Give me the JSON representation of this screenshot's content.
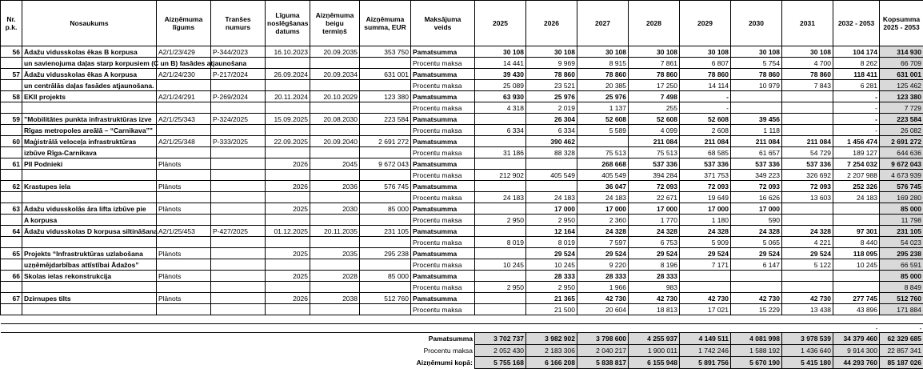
{
  "table": {
    "columns": [
      "Nr.\np.k.",
      "Nosaukums",
      "Aizņēmuma\nlīgums",
      "Tranšes\nnumurs",
      "Līguma\nnoslēgšanas\ndatums",
      "Aizņēmuma\nbeigu\ntermiņš",
      "Aizņēmuma\nsumma, EUR",
      "Maksājuma\nveids",
      "2025",
      "2026",
      "2027",
      "2028",
      "2029",
      "2030",
      "2031",
      "2032 - 2053",
      "Kopsumma\n2025 - 2053"
    ],
    "rows": [
      {
        "nr": "56",
        "name": [
          "Ādažu vidusskolas ēkas B korpusa",
          "un savienojuma daļas starp korpusiem (C un B) fasādes atjaunošana"
        ],
        "agreement": "A2/1/23/429",
        "tranche": "P-344/2023",
        "signed": "16.10.2023",
        "end": "20.09.2035",
        "amount": "353 750",
        "payments": [
          {
            "type": "Pamatsumma",
            "values": [
              "30 108",
              "30 108",
              "30 108",
              "30 108",
              "30 108",
              "30 108",
              "30 108",
              "104 174",
              "314 930"
            ]
          },
          {
            "type": "Procentu maksa",
            "values": [
              "14 441",
              "9 969",
              "8 915",
              "7 861",
              "6 807",
              "5 754",
              "4 700",
              "8 262",
              "66 709"
            ]
          }
        ]
      },
      {
        "nr": "57",
        "name": [
          "Ādažu vidusskolas ēkas A korpusa",
          "un centrālās daļas fasādes atjaunošana."
        ],
        "agreement": "A2/1/24/230",
        "tranche": "P-217/2024",
        "signed": "26.09.2024",
        "end": "20.09.2034",
        "amount": "631 001",
        "payments": [
          {
            "type": "Pamatsumma",
            "values": [
              "39 430",
              "78 860",
              "78 860",
              "78 860",
              "78 860",
              "78 860",
              "78 860",
              "118 411",
              "631 001"
            ]
          },
          {
            "type": "Procentu maksa",
            "values": [
              "25 089",
              "23 521",
              "20 385",
              "17 250",
              "14 114",
              "10 979",
              "7 843",
              "6 281",
              "125 462"
            ]
          }
        ]
      },
      {
        "nr": "58",
        "name": [
          "EKII projekts"
        ],
        "agreement": "A2/1/24/291",
        "tranche": "P-269/2024",
        "signed": "20.11.2024",
        "end": "20.10.2029",
        "amount": "123 380",
        "payments": [
          {
            "type": "Pamatsumma",
            "values": [
              "63 930",
              "25 976",
              "25 976",
              "7 498",
              "-",
              null,
              null,
              "-",
              "123 380"
            ]
          },
          {
            "type": "Procentu maksa",
            "values": [
              "4 318",
              "2 019",
              "1 137",
              "255",
              "-",
              null,
              null,
              "-",
              "7 729"
            ]
          }
        ]
      },
      {
        "nr": "59",
        "name": [
          "”Mobilitātes punkta infrastruktūras izve",
          "Rīgas metropoles areālā – “Carnikava”\""
        ],
        "agreement": "A2/1/25/343",
        "tranche": "P-324/2025",
        "signed": "15.09.2025",
        "end": "20.08.2030",
        "amount": "223 584",
        "payments": [
          {
            "type": "Pamatsumma",
            "values": [
              null,
              "26 304",
              "52 608",
              "52 608",
              "52 608",
              "39 456",
              null,
              "-",
              "223 584"
            ]
          },
          {
            "type": "Procentu maksa",
            "values": [
              "6 334",
              "6 334",
              "5 589",
              "4 099",
              "2 608",
              "1 118",
              null,
              "-",
              "26 082"
            ]
          }
        ]
      },
      {
        "nr": "60",
        "name": [
          "Maģistrālā  veloceļa infrastruktūras",
          "izbūve Rīga-Carnikava"
        ],
        "agreement": "A2/1/25/348",
        "tranche": "P-333/2025",
        "signed": "22.09.2025",
        "end": "20.09.2040",
        "amount": "2 691 272",
        "payments": [
          {
            "type": "Pamatsumma",
            "values": [
              null,
              "390 462",
              null,
              "211 084",
              "211 084",
              "211 084",
              "211 084",
              "1 456 474",
              "2 691 272"
            ]
          },
          {
            "type": "Procentu maksa",
            "values": [
              "31 186",
              "88 328",
              "75 513",
              "75 513",
              "68 585",
              "61 657",
              "54 729",
              "189 127",
              "644 636"
            ]
          }
        ]
      },
      {
        "nr": "61",
        "name": [
          "PII Podnieki"
        ],
        "agreement": "Plānots",
        "tranche": null,
        "signed": "2026",
        "end": "2045",
        "amount": "9 672 043",
        "payments": [
          {
            "type": "Pamatsumma",
            "values": [
              null,
              null,
              "268 668",
              "537 336",
              "537 336",
              "537 336",
              "537 336",
              "7 254 032",
              "9 672 043"
            ]
          },
          {
            "type": "Procentu maksa",
            "values": [
              "212 902",
              "405 549",
              "405 549",
              "394 284",
              "371 753",
              "349 223",
              "326 692",
              "2 207 988",
              "4 673 939"
            ]
          }
        ]
      },
      {
        "nr": "62",
        "name": [
          "Krastupes iela"
        ],
        "agreement": "Plānots",
        "tranche": null,
        "signed": "2026",
        "end": "2036",
        "amount": "576 745",
        "payments": [
          {
            "type": "Pamatsumma",
            "values": [
              null,
              null,
              "36 047",
              "72 093",
              "72 093",
              "72 093",
              "72 093",
              "252 326",
              "576 745"
            ]
          },
          {
            "type": "Procentu maksa",
            "values": [
              "24 183",
              "24 183",
              "24 183",
              "22 671",
              "19 649",
              "16 626",
              "13 603",
              "24 183",
              "169 280"
            ]
          }
        ]
      },
      {
        "nr": "63",
        "name": [
          "Ādažu vidusskolās āra lifta izbūve pie",
          "A korpusa"
        ],
        "agreement": "Plānots",
        "tranche": null,
        "signed": "2025",
        "end": "2030",
        "amount": "85 000",
        "payments": [
          {
            "type": "Pamatsumma",
            "values": [
              null,
              "17 000",
              "17 000",
              "17 000",
              "17 000",
              "17 000",
              null,
              null,
              "85 000"
            ]
          },
          {
            "type": "Procentu maksa",
            "values": [
              "2 950",
              "2 950",
              "2 360",
              "1 770",
              "1 180",
              "590",
              null,
              null,
              "11 798"
            ]
          }
        ]
      },
      {
        "nr": "64",
        "name": [
          "Ādažu vidusskolas D korpusa siltināšana"
        ],
        "agreement": "A2/1/25/453",
        "tranche": "P-427/2025",
        "signed": "01.12.2025",
        "end": "20.11.2035",
        "amount": "231 105",
        "payments": [
          {
            "type": "Pamatsumma",
            "values": [
              null,
              "12 164",
              "24 328",
              "24 328",
              "24 328",
              "24 328",
              "24 328",
              "97 301",
              "231 105"
            ]
          },
          {
            "type": "Procentu maksa",
            "values": [
              "8 019",
              "8 019",
              "7 597",
              "6 753",
              "5 909",
              "5 065",
              "4 221",
              "8 440",
              "54 023"
            ]
          }
        ]
      },
      {
        "nr": "65",
        "name": [
          "Projekts “Infrastruktūras uzlabošana",
          "uzņēmējdarbības attīstībai Ādažos”"
        ],
        "agreement": "Plānots",
        "tranche": null,
        "signed": "2025",
        "end": "2035",
        "amount": "295 238",
        "payments": [
          {
            "type": "Pamatsumma",
            "values": [
              null,
              "29 524",
              "29 524",
              "29 524",
              "29 524",
              "29 524",
              "29 524",
              "118 095",
              "295 238"
            ]
          },
          {
            "type": "Procentu maksa",
            "values": [
              "10 245",
              "10 245",
              "9 220",
              "8 196",
              "7 171",
              "6 147",
              "5 122",
              "10 245",
              "66 591"
            ]
          }
        ]
      },
      {
        "nr": "66",
        "name": [
          "Skolas ielas rekonstrukcija"
        ],
        "agreement": "Plānots",
        "tranche": null,
        "signed": "2025",
        "end": "2028",
        "amount": "85 000",
        "payments": [
          {
            "type": "Pamatsumma",
            "values": [
              null,
              "28 333",
              "28 333",
              "28 333",
              null,
              null,
              null,
              null,
              "85 000"
            ]
          },
          {
            "type": "Procentu maksa",
            "values": [
              "2 950",
              "2 950",
              "1 966",
              "983",
              null,
              null,
              null,
              null,
              "8 849"
            ]
          }
        ]
      },
      {
        "nr": "67",
        "name": [
          "Dzirnupes tilts"
        ],
        "agreement": "Plānots",
        "tranche": null,
        "signed": "2026",
        "end": "2038",
        "amount": "512 760",
        "payments": [
          {
            "type": "Pamatsumma",
            "values": [
              null,
              "21 365",
              "42 730",
              "42 730",
              "42 730",
              "42 730",
              "42 730",
              "277 745",
              "512 760"
            ]
          },
          {
            "type": "Procentu maksa",
            "values": [
              null,
              "21 500",
              "20 604",
              "18 813",
              "17 021",
              "15 229",
              "13 438",
              "43 896",
              "171 884"
            ]
          }
        ]
      }
    ],
    "dash_row": [
      "-",
      "-"
    ],
    "totals": [
      {
        "label": "Pamatsumma",
        "values": [
          "3 702 737",
          "3 982 902",
          "3 798 600",
          "4 255 937",
          "4 149 511",
          "4 081 998",
          "3 978 539",
          "34 379 460",
          "62 329 685"
        ]
      },
      {
        "label": "Procentu maksa",
        "values": [
          "2 052 430",
          "2 183 306",
          "2 040 217",
          "1 900 011",
          "1 742 246",
          "1 588 192",
          "1 436 640",
          "9 914 300",
          "22 857 341"
        ]
      },
      {
        "label": "Aizņēmumi kopā:",
        "values": [
          "5 755 168",
          "6 166 208",
          "5 838 817",
          "6 155 948",
          "5 891 756",
          "5 670 190",
          "5 415 180",
          "44 293 760",
          "85 187 026"
        ]
      }
    ]
  }
}
